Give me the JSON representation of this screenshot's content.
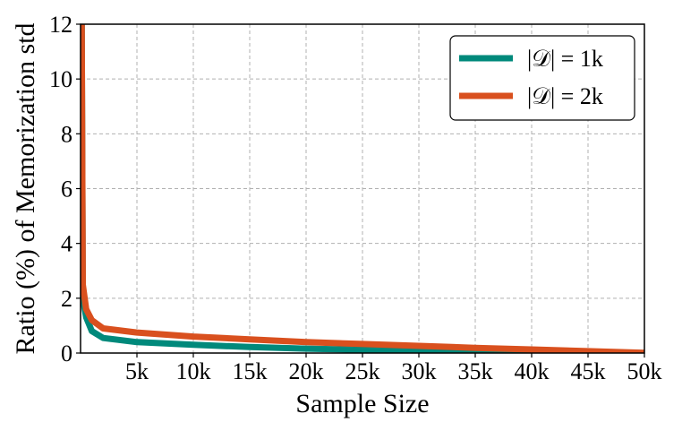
{
  "chart_data": {
    "type": "line",
    "xlabel": "Sample Size",
    "ylabel": "Ratio (%) of Memorization std",
    "xlim": [
      0,
      50000
    ],
    "ylim": [
      0,
      12
    ],
    "x_ticks": [
      5000,
      10000,
      15000,
      20000,
      25000,
      30000,
      35000,
      40000,
      45000,
      50000
    ],
    "x_tick_labels": [
      "5k",
      "10k",
      "15k",
      "20k",
      "25k",
      "30k",
      "35k",
      "40k",
      "45k",
      "50k"
    ],
    "y_ticks": [
      0,
      2,
      4,
      6,
      8,
      10,
      12
    ],
    "y_tick_labels": [
      "0",
      "2",
      "4",
      "6",
      "8",
      "10",
      "12"
    ],
    "grid": true,
    "legend_position": "top-right",
    "series": [
      {
        "name": "|𝒟| = 1k",
        "color": "#00897b",
        "x": [
          100,
          200,
          500,
          1000,
          2000,
          5000,
          10000,
          15000,
          20000,
          25000,
          30000,
          35000,
          40000,
          45000,
          50000
        ],
        "y": [
          12.0,
          2.0,
          1.3,
          0.8,
          0.55,
          0.4,
          0.3,
          0.22,
          0.16,
          0.12,
          0.09,
          0.06,
          0.04,
          0.02,
          0.0
        ]
      },
      {
        "name": "|𝒟| = 2k",
        "color": "#d9501e",
        "x": [
          100,
          200,
          500,
          1000,
          2000,
          5000,
          10000,
          15000,
          20000,
          25000,
          30000,
          35000,
          40000,
          45000,
          50000
        ],
        "y": [
          12.0,
          2.5,
          1.6,
          1.2,
          0.9,
          0.75,
          0.6,
          0.5,
          0.4,
          0.33,
          0.26,
          0.19,
          0.13,
          0.07,
          0.01
        ]
      }
    ]
  }
}
